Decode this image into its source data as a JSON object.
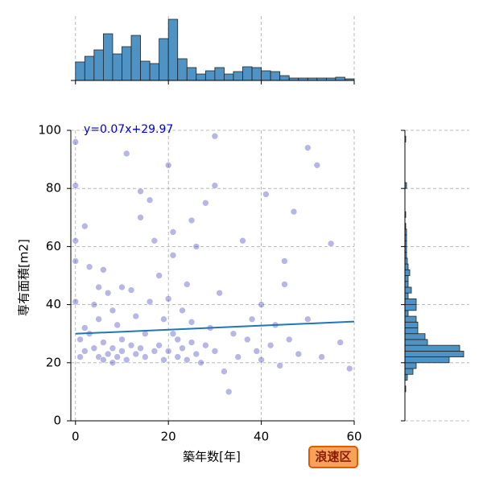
{
  "chart_data": {
    "type": "scatter",
    "x_label": "築年数[年]",
    "y_label": "専有面積[m2]",
    "annotation": "y=0.07x+29.97",
    "badge": "浪速区",
    "color": "#1010b0",
    "line_color": "#1f77b4",
    "hist_color": "#4f93c4",
    "annotation_color": "#0000cc",
    "grid": true,
    "xlim": [
      -1,
      60
    ],
    "ylim": [
      0,
      100
    ],
    "xticks": [
      0,
      20,
      40,
      60
    ],
    "yticks": [
      0,
      20,
      40,
      60,
      80,
      100
    ],
    "regression": {
      "slope": 0.07,
      "intercept": 29.97
    },
    "x": [
      0,
      0,
      0,
      0,
      0,
      1,
      1,
      2,
      2,
      3,
      3,
      4,
      4,
      5,
      5,
      5,
      6,
      6,
      7,
      7,
      8,
      8,
      8,
      9,
      9,
      10,
      10,
      11,
      11,
      12,
      12,
      13,
      13,
      14,
      14,
      15,
      15,
      16,
      16,
      17,
      17,
      18,
      18,
      19,
      19,
      20,
      20,
      20,
      21,
      21,
      22,
      22,
      23,
      23,
      24,
      24,
      25,
      25,
      26,
      26,
      27,
      28,
      28,
      29,
      30,
      30,
      31,
      32,
      33,
      34,
      35,
      36,
      37,
      38,
      39,
      40,
      40,
      41,
      42,
      43,
      44,
      45,
      46,
      47,
      48,
      50,
      52,
      53,
      55,
      57,
      59,
      2,
      10,
      14,
      21,
      30,
      45,
      50,
      6,
      25
    ],
    "y": [
      96,
      81,
      62,
      55,
      41,
      22,
      28,
      67,
      24,
      53,
      30,
      25,
      40,
      22,
      35,
      46,
      21,
      27,
      23,
      44,
      25,
      20,
      38,
      22,
      33,
      24,
      28,
      92,
      21,
      26,
      45,
      23,
      36,
      70,
      25,
      22,
      30,
      76,
      41,
      24,
      62,
      26,
      50,
      21,
      35,
      88,
      24,
      42,
      30,
      65,
      22,
      28,
      25,
      38,
      21,
      47,
      27,
      34,
      23,
      60,
      20,
      26,
      75,
      32,
      81,
      24,
      44,
      17,
      10,
      30,
      22,
      62,
      28,
      35,
      24,
      40,
      21,
      78,
      26,
      33,
      19,
      47,
      28,
      72,
      23,
      35,
      88,
      22,
      61,
      27,
      18,
      32,
      46,
      79,
      57,
      98,
      55,
      94,
      52,
      69
    ],
    "marginal_x": {
      "lim": [
        0,
        80
      ],
      "bins": [
        0,
        2,
        4,
        6,
        8,
        10,
        12,
        14,
        16,
        18,
        20,
        22,
        24,
        26,
        28,
        30,
        32,
        34,
        36,
        38,
        40,
        42,
        44,
        46,
        48,
        50,
        52,
        54,
        56,
        58,
        60
      ],
      "counts": [
        23,
        30,
        38,
        58,
        33,
        42,
        56,
        24,
        21,
        52,
        76,
        27,
        16,
        8,
        12,
        16,
        8,
        11,
        17,
        16,
        12,
        11,
        6,
        3,
        3,
        3,
        3,
        3,
        4,
        2
      ]
    },
    "marginal_y": {
      "lim": [
        0,
        80
      ],
      "bins": [
        0,
        2,
        4,
        6,
        8,
        10,
        12,
        14,
        16,
        18,
        20,
        22,
        24,
        26,
        28,
        30,
        32,
        34,
        36,
        38,
        40,
        42,
        44,
        46,
        48,
        50,
        52,
        54,
        56,
        58,
        60,
        62,
        64,
        66,
        68,
        70,
        72,
        74,
        76,
        78,
        80,
        82,
        84,
        86,
        88,
        90,
        92,
        94,
        96,
        98,
        100
      ],
      "counts": [
        0,
        0,
        0,
        0,
        0,
        1,
        0,
        3,
        10,
        14,
        55,
        73,
        68,
        28,
        25,
        16,
        16,
        14,
        4,
        14,
        14,
        4,
        8,
        4,
        4,
        6,
        4,
        3,
        2,
        2,
        2,
        2,
        2,
        1,
        0,
        1,
        0,
        0,
        0,
        0,
        2,
        0,
        0,
        0,
        0,
        0,
        0,
        0,
        1,
        0
      ]
    }
  }
}
